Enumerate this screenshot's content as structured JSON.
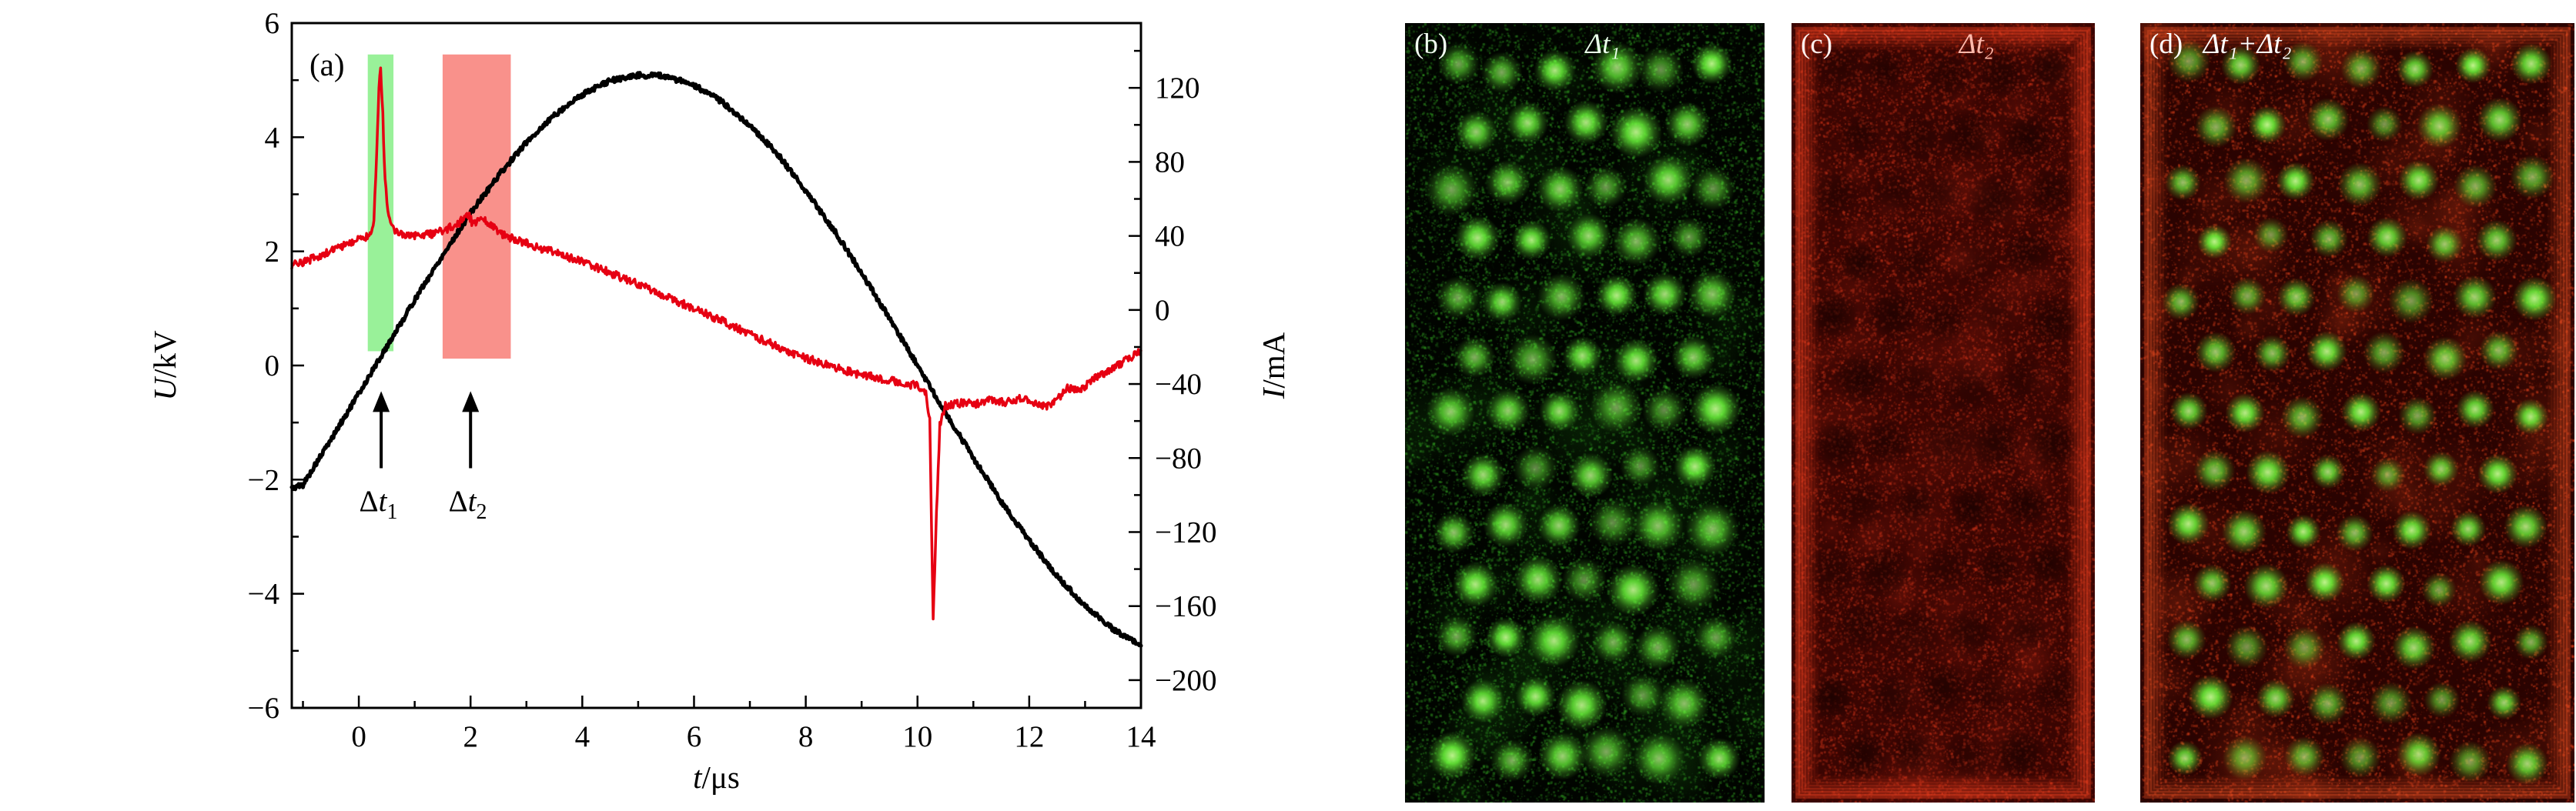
{
  "figure": {
    "background": "#ffffff"
  },
  "chart_data": {
    "type": "line",
    "panel_label": "(a)",
    "x_axis": {
      "label_var": "t",
      "label_unit": "/μs",
      "lim": [
        -1.2,
        14
      ],
      "ticks": [
        0,
        2,
        4,
        6,
        8,
        10,
        12,
        14
      ],
      "minor_step": 1
    },
    "y_left": {
      "label_var": "U",
      "label_unit": "/kV",
      "lim": [
        -6,
        6
      ],
      "ticks": [
        6,
        4,
        2,
        0,
        -2,
        -4,
        -6
      ],
      "minor_step": 1
    },
    "y_right": {
      "label_var": "I",
      "label_unit": "/mA",
      "lim": [
        -215,
        155
      ],
      "ticks": [
        120,
        80,
        40,
        0,
        -40,
        -80,
        -120,
        -160,
        -200
      ],
      "minor_step": 20
    },
    "grid": false,
    "legend": null,
    "series": [
      {
        "name": "voltage",
        "axis": "left",
        "color": "#000000",
        "width": 5,
        "noise": 0.045,
        "points": [
          [
            -1.2,
            -2.15
          ],
          [
            -1,
            -2.09
          ],
          [
            -0.5,
            -1.3
          ],
          [
            0,
            -0.49
          ],
          [
            0.5,
            0.33
          ],
          [
            1,
            1.15
          ],
          [
            1.5,
            1.93
          ],
          [
            2,
            2.67
          ],
          [
            2.5,
            3.33
          ],
          [
            3,
            3.91
          ],
          [
            3.5,
            4.39
          ],
          [
            4,
            4.75
          ],
          [
            4.5,
            4.99
          ],
          [
            5,
            5.09
          ],
          [
            5.5,
            5.07
          ],
          [
            6,
            4.91
          ],
          [
            6.5,
            4.62
          ],
          [
            7,
            4.21
          ],
          [
            7.5,
            3.7
          ],
          [
            8,
            3.06
          ],
          [
            8.5,
            2.38
          ],
          [
            9,
            1.62
          ],
          [
            9.5,
            0.82
          ],
          [
            10,
            0
          ],
          [
            10.5,
            -0.82
          ],
          [
            11,
            -1.62
          ],
          [
            11.5,
            -2.38
          ],
          [
            12,
            -3.06
          ],
          [
            12.5,
            -3.7
          ],
          [
            13,
            -4.21
          ],
          [
            13.5,
            -4.62
          ],
          [
            14,
            -4.91
          ]
        ]
      },
      {
        "name": "current",
        "axis": "right",
        "color": "#e60012",
        "width": 3.5,
        "noise": 2.2,
        "points": [
          [
            -1.2,
            24
          ],
          [
            -0.8,
            28
          ],
          [
            -0.4,
            33
          ],
          [
            0,
            38
          ],
          [
            0.2,
            40
          ],
          [
            0.27,
            48
          ],
          [
            0.32,
            85
          ],
          [
            0.36,
            120
          ],
          [
            0.39,
            131
          ],
          [
            0.43,
            105
          ],
          [
            0.47,
            70
          ],
          [
            0.52,
            52
          ],
          [
            0.6,
            44
          ],
          [
            0.8,
            41
          ],
          [
            1,
            40
          ],
          [
            1.3,
            41
          ],
          [
            1.6,
            44
          ],
          [
            1.8,
            47
          ],
          [
            1.95,
            52
          ],
          [
            2.05,
            46
          ],
          [
            2.2,
            49
          ],
          [
            2.35,
            46
          ],
          [
            2.5,
            42
          ],
          [
            2.8,
            38
          ],
          [
            3,
            36
          ],
          [
            3.5,
            31
          ],
          [
            4,
            26
          ],
          [
            4.5,
            20
          ],
          [
            5,
            14
          ],
          [
            5.5,
            7
          ],
          [
            6,
            1
          ],
          [
            6.5,
            -6
          ],
          [
            7,
            -13
          ],
          [
            7.5,
            -20
          ],
          [
            8,
            -26
          ],
          [
            8.5,
            -31
          ],
          [
            9,
            -35
          ],
          [
            9.5,
            -38
          ],
          [
            10,
            -41
          ],
          [
            10.15,
            -44
          ],
          [
            10.22,
            -60
          ],
          [
            10.28,
            -168
          ],
          [
            10.34,
            -110
          ],
          [
            10.4,
            -62
          ],
          [
            10.5,
            -52
          ],
          [
            10.8,
            -50
          ],
          [
            11,
            -51
          ],
          [
            11.3,
            -49
          ],
          [
            11.6,
            -50
          ],
          [
            11.9,
            -47
          ],
          [
            12.1,
            -50
          ],
          [
            12.3,
            -52
          ],
          [
            12.5,
            -48
          ],
          [
            12.7,
            -42
          ],
          [
            12.9,
            -44
          ],
          [
            13.1,
            -38
          ],
          [
            13.4,
            -34
          ],
          [
            13.7,
            -28
          ],
          [
            14,
            -22
          ]
        ]
      }
    ],
    "highlights": [
      {
        "name": "dt1-band",
        "color": "#8ef08e",
        "opacity": 0.9,
        "x0": 0.16,
        "x1": 0.62,
        "y0_left": 0.25,
        "y1_left": 5.45
      },
      {
        "name": "dt2-band",
        "color": "#f8857e",
        "opacity": 0.9,
        "x0": 1.5,
        "x1": 2.72,
        "y0_left": 0.12,
        "y1_left": 5.45
      }
    ],
    "annotations": [
      {
        "name": "dt1",
        "delta": "Δ",
        "var": "t",
        "sub": "1",
        "arrow_x": 0.4,
        "arrow_y0": -1.8,
        "arrow_y1": -0.45,
        "label_x": 0.35,
        "label_y": -2.55
      },
      {
        "name": "dt2",
        "delta": "Δ",
        "var": "t",
        "sub": "2",
        "arrow_x": 2.0,
        "arrow_y0": -1.8,
        "arrow_y1": -0.45,
        "label_x": 1.95,
        "label_y": -2.55
      }
    ]
  },
  "panels": [
    {
      "id": "b",
      "label": "(b)",
      "tag": "Δt₁",
      "label_color": "#f2fff2",
      "tag_color": "#eaffea",
      "render": {
        "seed": 7,
        "bg": "#010400",
        "noise": {
          "rgb": "60,190,40",
          "alpha": 0.45,
          "count": 26000
        },
        "blobs": {
          "rgb": "45,170,30",
          "count": 55,
          "rmin": 25,
          "rmax": 70,
          "alpha": 0.1
        },
        "dots": {
          "rows": 13,
          "cols": 6,
          "margin_x": 64,
          "margin_y": 60,
          "jitter": 16,
          "radius": 30,
          "min_intensity": 0.55,
          "rgb": "110,255,60",
          "core_rgb": "200,255,150",
          "dark": false
        }
      }
    },
    {
      "id": "c",
      "label": "(c)",
      "tag": "Δt₂",
      "label_color": "#fff0ee",
      "tag_color": "#ffb9ab",
      "render": {
        "seed": 11,
        "bg": "#3a0502",
        "noise": {
          "rgb": "230,60,30",
          "alpha": 0.4,
          "count": 30000
        },
        "blobs": {
          "rgb": "255,60,30",
          "count": 75,
          "rmin": 20,
          "rmax": 55,
          "alpha": 0.1
        },
        "edge_glow": {
          "rgb": "255,70,35",
          "alpha": 0.4,
          "inset": 8,
          "steps": 7
        },
        "dots": {
          "rows": 12,
          "cols": 5,
          "margin_x": 58,
          "margin_y": 62,
          "jitter": 14,
          "radius": 32,
          "min_intensity": 0.5,
          "rgb": "15,0,0",
          "dark": true
        }
      }
    },
    {
      "id": "d",
      "label": "(d)",
      "tag": "Δt₁+Δt₂",
      "label_color": "#ffffff",
      "tag_color": "#ffffff",
      "render": {
        "seed": 23,
        "bg": "#2a0301",
        "noise": {
          "rgb": "235,70,30",
          "alpha": 0.45,
          "count": 30000
        },
        "blobs": {
          "rgb": "255,80,30",
          "count": 85,
          "rmin": 20,
          "rmax": 60,
          "alpha": 0.12
        },
        "edge_glow": {
          "rgb": "255,90,40",
          "alpha": 0.35,
          "inset": 8,
          "steps": 7
        },
        "dots": {
          "rows": 13,
          "cols": 7,
          "margin_x": 58,
          "margin_y": 56,
          "jitter": 13,
          "radius": 26,
          "min_intensity": 0.6,
          "rgb": "110,255,60",
          "core_rgb": "200,255,150",
          "dark": false
        }
      }
    }
  ]
}
